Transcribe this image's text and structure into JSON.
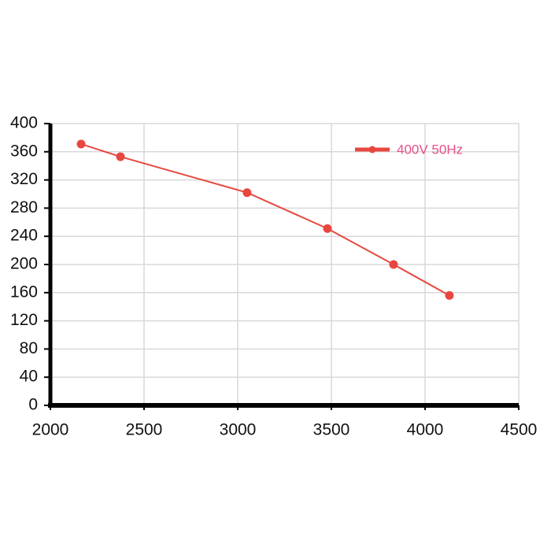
{
  "chart_data": {
    "type": "line",
    "x": [
      2164,
      2374,
      3050,
      3479,
      3832,
      4130
    ],
    "series": [
      {
        "name": "400V 50Hz",
        "color": "#e8473f",
        "values": [
          371,
          353,
          302,
          251,
          200,
          156
        ]
      }
    ],
    "xlim": [
      2000,
      4500
    ],
    "xticks": [
      2000,
      2500,
      3000,
      3500,
      4000,
      4500
    ],
    "ylim": [
      0,
      400
    ],
    "yticks": [
      0,
      40,
      80,
      120,
      160,
      200,
      240,
      280,
      320,
      360,
      400
    ],
    "grid": true,
    "legend": "upper right"
  }
}
